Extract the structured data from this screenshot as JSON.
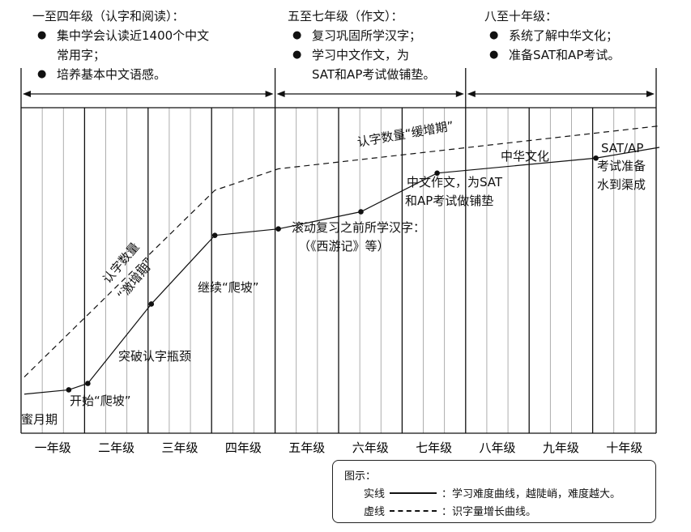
{
  "stages": [
    {
      "title": "一至四年级（认字和阅读）：",
      "bullets": [
        "集中学会认读近1400个中文\n常用字；",
        "培养基本中文语感。"
      ]
    },
    {
      "title": "五至七年级（作文）：",
      "bullets": [
        "复习巩固所学汉字；",
        "学习中文作文，为\nSAT和AP考试做铺垫。"
      ]
    },
    {
      "title": "八至十年级：",
      "bullets": [
        "系统了解中华文化；",
        "准备SAT和AP考试。"
      ]
    }
  ],
  "bullet_symbol": "●",
  "grades": [
    "一年级",
    "二年级",
    "三年级",
    "四年级",
    "五年级",
    "六年级",
    "七年级",
    "八年级",
    "九年级",
    "十年级"
  ],
  "annotations": {
    "honeymoon": "蜜月期",
    "start_climb": "开始“爬坡”",
    "break_bottleneck": "突破认字瓶颈",
    "continue_climb": "继续“爬坡”",
    "review_line1": "滚动复习之前所学汉字：",
    "review_line2": "（《西游记》等）",
    "composition_line1": "中文作文，为SAT",
    "composition_line2": "和AP考试做铺垫",
    "culture": "中华文化",
    "satap_line1": "SAT/AP",
    "satap_line2": "考试准备",
    "satap_line3": "水到渠成",
    "surge_line1": "认字数量",
    "surge_line2": "“激增期”",
    "slow_growth": "认字数量“缓增期”"
  },
  "legend": {
    "title": "图示：",
    "solid_label": "实线",
    "solid_desc": "：学习难度曲线，越陡峭，难度越大。",
    "dashed_label": "虚线",
    "dashed_desc": "：识字量增长曲线。"
  },
  "chart_data": {
    "type": "line",
    "categories": [
      "一年级",
      "二年级",
      "三年级",
      "四年级",
      "五年级",
      "六年级",
      "七年级",
      "八年级",
      "九年级",
      "十年级"
    ],
    "series": [
      {
        "name": "实线",
        "style": "solid",
        "x": [
          0,
          0.7,
          1,
          2,
          3,
          4,
          5.3,
          6.5,
          9,
          10
        ],
        "y": [
          5,
          7,
          10,
          47,
          79,
          82,
          90,
          108,
          115,
          120
        ]
      },
      {
        "name": "虚线",
        "style": "dashed",
        "x": [
          0,
          3,
          4,
          10
        ],
        "y": [
          13,
          100,
          110,
          130
        ]
      }
    ]
  }
}
